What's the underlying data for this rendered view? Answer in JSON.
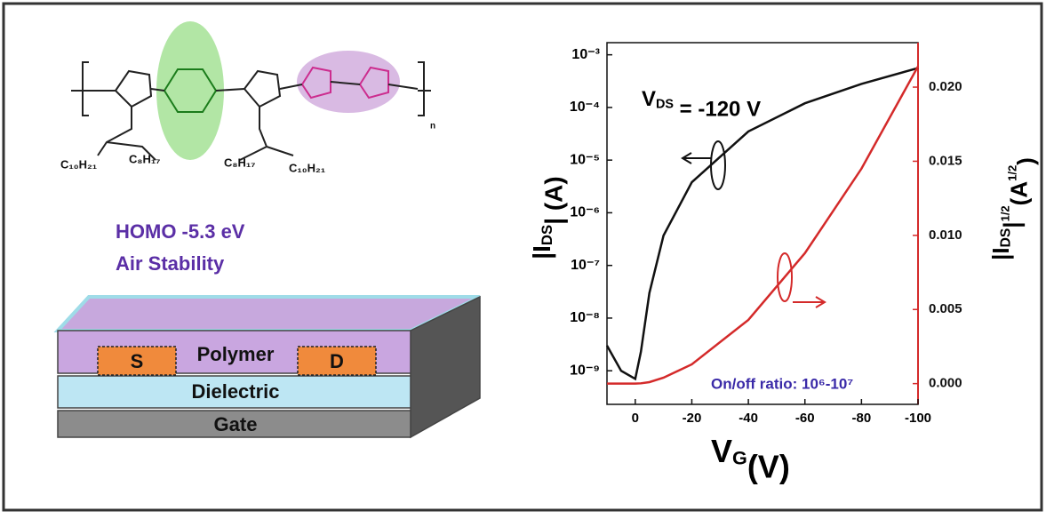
{
  "chart_data": {
    "type": "line",
    "x_label": [
      "V",
      "G",
      "(V)"
    ],
    "y_label": [
      "|I",
      "DS",
      "|  (A)"
    ],
    "y2_label": [
      "|I",
      "DS",
      "|",
      "1/2",
      "(A",
      "1/2",
      ")"
    ],
    "annotations": {
      "vds": [
        "V",
        "DS",
        " = -120 V"
      ],
      "ratio": "On/off ratio:  10⁶-10⁷"
    },
    "x": [
      10,
      5,
      0,
      -2,
      -5,
      -10,
      -20,
      -40,
      -60,
      -80,
      -100
    ],
    "xlim": [
      10,
      -100
    ],
    "xticks": [
      0,
      -20,
      -40,
      -60,
      -80,
      -100
    ],
    "ylog": true,
    "ylim": [
      2.3e-10,
      0.0017
    ],
    "yticks": [
      {
        "value": 1e-09,
        "label": "10⁻⁹"
      },
      {
        "value": 1e-08,
        "label": "10⁻⁸"
      },
      {
        "value": 1e-07,
        "label": "10⁻⁷"
      },
      {
        "value": 1e-06,
        "label": "10⁻⁶"
      },
      {
        "value": 1e-05,
        "label": "10⁻⁵"
      },
      {
        "value": 0.0001,
        "label": "10⁻⁴"
      },
      {
        "value": 0.001,
        "label": "10⁻³"
      }
    ],
    "y2lim": [
      -0.0014,
      0.023
    ],
    "y2ticks": [
      {
        "value": 0,
        "label": "0.000"
      },
      {
        "value": 0.005,
        "label": "0.005"
      },
      {
        "value": 0.01,
        "label": "0.010"
      },
      {
        "value": 0.015,
        "label": "0.015"
      },
      {
        "value": 0.02,
        "label": "0.020"
      }
    ],
    "y2color": "#d42a2a",
    "series": [
      {
        "color": "#111111",
        "values": [
          3e-09,
          1e-09,
          7e-10,
          2.3e-09,
          3e-08,
          3.7e-07,
          3.8e-06,
          3.5e-05,
          0.00012,
          0.00028,
          0.00056
        ]
      },
      {
        "color": "#d42a2a",
        "axis": "y2",
        "values": [
          0,
          0,
          0,
          2e-05,
          0.0001,
          0.0004,
          0.0013,
          0.0043,
          0.0088,
          0.0145,
          0.0214
        ]
      }
    ]
  },
  "diagram": {
    "homo": "HOMO  -5.3 eV",
    "stability": "Air Stability",
    "layers": {
      "polymer": "Polymer",
      "source": "S",
      "drain": "D",
      "dielectric": "Dielectric",
      "gate": "Gate"
    },
    "molecule": {
      "c10a": "C₁₀H₂₁",
      "c8a": "C₈H₁₇",
      "c8b": "C₈H₁₇",
      "c10b": "C₁₀H₂₁",
      "n": "n"
    }
  }
}
